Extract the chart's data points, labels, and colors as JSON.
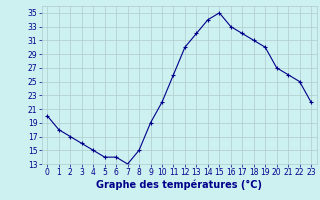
{
  "hours": [
    0,
    1,
    2,
    3,
    4,
    5,
    6,
    7,
    8,
    9,
    10,
    11,
    12,
    13,
    14,
    15,
    16,
    17,
    18,
    19,
    20,
    21,
    22,
    23
  ],
  "temperatures": [
    20,
    18,
    17,
    16,
    15,
    14,
    14,
    13,
    15,
    19,
    22,
    26,
    30,
    32,
    34,
    35,
    33,
    32,
    31,
    30,
    27,
    26,
    25,
    22
  ],
  "line_color": "#00008B",
  "marker": "+",
  "marker_size": 3,
  "xlabel": "Graphe des températures (°C)",
  "xlabel_color": "#00008B",
  "xlabel_fontsize": 7,
  "background_color": "#cdf0f0",
  "grid_color": "#b0cccc",
  "tick_color": "#00008B",
  "ylim": [
    13,
    36
  ],
  "xlim": [
    -0.5,
    23.5
  ],
  "yticks": [
    13,
    15,
    17,
    19,
    21,
    23,
    25,
    27,
    29,
    31,
    33,
    35
  ],
  "xticks": [
    0,
    1,
    2,
    3,
    4,
    5,
    6,
    7,
    8,
    9,
    10,
    11,
    12,
    13,
    14,
    15,
    16,
    17,
    18,
    19,
    20,
    21,
    22,
    23
  ],
  "tick_fontsize": 5.5
}
